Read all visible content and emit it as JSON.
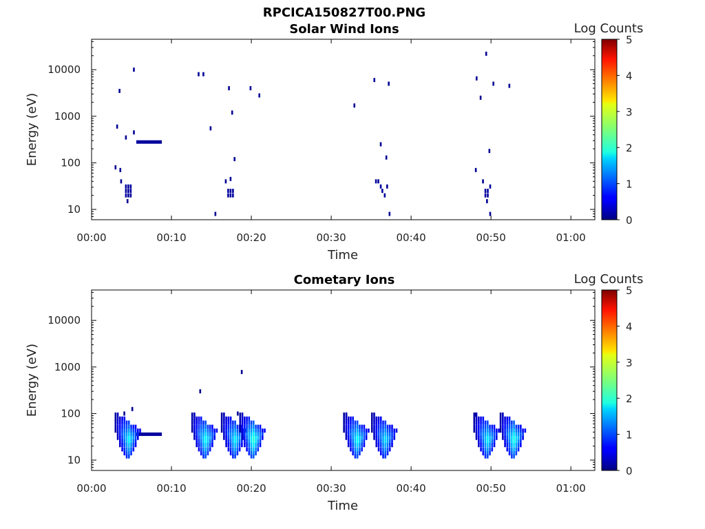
{
  "figure_title": "RPCICA150827T00.PNG",
  "colors": {
    "low": "#000080",
    "mid": "#00ffff",
    "high": "#ff0000"
  },
  "chart_data": [
    {
      "type": "heatmap",
      "title": "Solar Wind Ions",
      "xlabel": "Time",
      "ylabel": "Energy (eV)",
      "x_ticks": [
        "00:00",
        "00:10",
        "00:20",
        "00:30",
        "00:40",
        "00:50",
        "01:00"
      ],
      "x_tick_minutes": [
        0,
        10,
        20,
        30,
        40,
        50,
        60
      ],
      "xlim_minutes": [
        0,
        63
      ],
      "y_scale": "log",
      "y_ticks": [
        "10",
        "100",
        "1000",
        "10000"
      ],
      "y_tick_values": [
        10,
        100,
        1000,
        10000
      ],
      "ylim": [
        6,
        45000
      ],
      "colorbar": {
        "label": "Log Counts",
        "ticks": [
          "0",
          "1",
          "2",
          "3",
          "4",
          "5"
        ],
        "range": [
          0,
          5
        ]
      },
      "cells": [
        {
          "t": 4.3,
          "e": 25,
          "v": 0.15
        },
        {
          "t": 4.6,
          "e": 25,
          "v": 0.15
        },
        {
          "t": 4.9,
          "e": 25,
          "v": 0.15
        },
        {
          "t": 4.3,
          "e": 20,
          "v": 0.15
        },
        {
          "t": 4.6,
          "e": 20,
          "v": 0.15
        },
        {
          "t": 4.9,
          "e": 20,
          "v": 0.15
        },
        {
          "t": 4.3,
          "e": 31,
          "v": 0.15
        },
        {
          "t": 4.6,
          "e": 31,
          "v": 0.15
        },
        {
          "t": 4.9,
          "e": 31,
          "v": 0.15
        },
        {
          "t": 4.5,
          "e": 15,
          "v": 0.1
        },
        {
          "t": 3.7,
          "e": 40,
          "v": 0.1
        },
        {
          "t": 3.6,
          "e": 70,
          "v": 0.1
        },
        {
          "t": 3.2,
          "e": 600,
          "v": 0.1
        },
        {
          "t": 3.5,
          "e": 3500,
          "v": 0.1
        },
        {
          "t": 5.3,
          "e": 10000,
          "v": 0.1
        },
        {
          "t": 4.3,
          "e": 350,
          "v": 0.1
        },
        {
          "t": 5.3,
          "e": 450,
          "v": 0.1
        },
        {
          "t": 3.0,
          "e": 80,
          "v": 0.1
        },
        {
          "t": 17.1,
          "e": 20,
          "v": 0.15
        },
        {
          "t": 17.4,
          "e": 20,
          "v": 0.15
        },
        {
          "t": 17.7,
          "e": 20,
          "v": 0.15
        },
        {
          "t": 17.1,
          "e": 25,
          "v": 0.15
        },
        {
          "t": 17.4,
          "e": 25,
          "v": 0.15
        },
        {
          "t": 17.7,
          "e": 25,
          "v": 0.15
        },
        {
          "t": 16.8,
          "e": 40,
          "v": 0.1
        },
        {
          "t": 17.4,
          "e": 45,
          "v": 0.1
        },
        {
          "t": 15.5,
          "e": 8,
          "v": 0.1
        },
        {
          "t": 14.9,
          "e": 550,
          "v": 0.1
        },
        {
          "t": 17.2,
          "e": 4000,
          "v": 0.1
        },
        {
          "t": 17.6,
          "e": 1200,
          "v": 0.1
        },
        {
          "t": 17.9,
          "e": 120,
          "v": 0.1
        },
        {
          "t": 19.9,
          "e": 4000,
          "v": 0.1
        },
        {
          "t": 21.0,
          "e": 2800,
          "v": 0.1
        },
        {
          "t": 13.4,
          "e": 8000,
          "v": 0.1
        },
        {
          "t": 14.0,
          "e": 8000,
          "v": 0.1
        },
        {
          "t": 35.6,
          "e": 40,
          "v": 0.15
        },
        {
          "t": 35.9,
          "e": 40,
          "v": 0.15
        },
        {
          "t": 36.2,
          "e": 31,
          "v": 0.15
        },
        {
          "t": 36.4,
          "e": 25,
          "v": 0.15
        },
        {
          "t": 36.7,
          "e": 20,
          "v": 0.15
        },
        {
          "t": 37.0,
          "e": 31,
          "v": 0.1
        },
        {
          "t": 37.3,
          "e": 8,
          "v": 0.1
        },
        {
          "t": 35.4,
          "e": 6000,
          "v": 0.1
        },
        {
          "t": 37.2,
          "e": 5000,
          "v": 0.1
        },
        {
          "t": 32.9,
          "e": 1700,
          "v": 0.1
        },
        {
          "t": 36.2,
          "e": 250,
          "v": 0.1
        },
        {
          "t": 36.9,
          "e": 130,
          "v": 0.1
        },
        {
          "t": 49.3,
          "e": 20,
          "v": 0.15
        },
        {
          "t": 49.6,
          "e": 20,
          "v": 0.15
        },
        {
          "t": 49.3,
          "e": 25,
          "v": 0.15
        },
        {
          "t": 49.6,
          "e": 25,
          "v": 0.15
        },
        {
          "t": 49.9,
          "e": 31,
          "v": 0.15
        },
        {
          "t": 49.0,
          "e": 40,
          "v": 0.1
        },
        {
          "t": 49.5,
          "e": 15,
          "v": 0.1
        },
        {
          "t": 49.9,
          "e": 8,
          "v": 0.1
        },
        {
          "t": 49.4,
          "e": 22000,
          "v": 0.1
        },
        {
          "t": 48.2,
          "e": 6500,
          "v": 0.1
        },
        {
          "t": 50.3,
          "e": 5000,
          "v": 0.1
        },
        {
          "t": 52.3,
          "e": 4500,
          "v": 0.1
        },
        {
          "t": 48.7,
          "e": 2500,
          "v": 0.1
        },
        {
          "t": 49.8,
          "e": 180,
          "v": 0.1
        },
        {
          "t": 48.1,
          "e": 70,
          "v": 0.1
        }
      ],
      "segments": [
        {
          "t0": 5.6,
          "t1": 8.8,
          "e": 280,
          "v": 0.15
        }
      ]
    },
    {
      "type": "heatmap",
      "title": "Cometary Ions",
      "xlabel": "Time",
      "ylabel": "Energy (eV)",
      "x_ticks": [
        "00:00",
        "00:10",
        "00:20",
        "00:30",
        "00:40",
        "00:50",
        "01:00"
      ],
      "x_tick_minutes": [
        0,
        10,
        20,
        30,
        40,
        50,
        60
      ],
      "xlim_minutes": [
        0,
        63
      ],
      "y_scale": "log",
      "y_ticks": [
        "10",
        "100",
        "1000",
        "10000"
      ],
      "y_tick_values": [
        10,
        100,
        1000,
        10000
      ],
      "ylim": [
        6,
        45000
      ],
      "colorbar": {
        "label": "Log Counts",
        "ticks": [
          "0",
          "1",
          "2",
          "3",
          "4",
          "5"
        ],
        "range": [
          0,
          5
        ]
      },
      "bursts": [
        {
          "t": 3.0,
          "peak": 1.9
        },
        {
          "t": 12.6,
          "peak": 2.0
        },
        {
          "t": 16.3,
          "peak": 1.9
        },
        {
          "t": 18.6,
          "peak": 2.2
        },
        {
          "t": 31.6,
          "peak": 2.0
        },
        {
          "t": 35.1,
          "peak": 1.8
        },
        {
          "t": 47.9,
          "peak": 1.9
        },
        {
          "t": 51.2,
          "peak": 2.1
        }
      ],
      "cells": [
        {
          "t": 5.1,
          "e": 125,
          "v": 0.1
        },
        {
          "t": 4.1,
          "e": 100,
          "v": 0.1
        },
        {
          "t": 13.6,
          "e": 300,
          "v": 0.1
        },
        {
          "t": 18.8,
          "e": 780,
          "v": 0.1
        },
        {
          "t": 18.3,
          "e": 100,
          "v": 0.1
        },
        {
          "t": 31.9,
          "e": 95,
          "v": 0.1
        },
        {
          "t": 48.1,
          "e": 95,
          "v": 0.1
        }
      ],
      "segments": [
        {
          "t0": 5.6,
          "t1": 8.8,
          "e": 36,
          "v": 0.15
        }
      ]
    }
  ]
}
